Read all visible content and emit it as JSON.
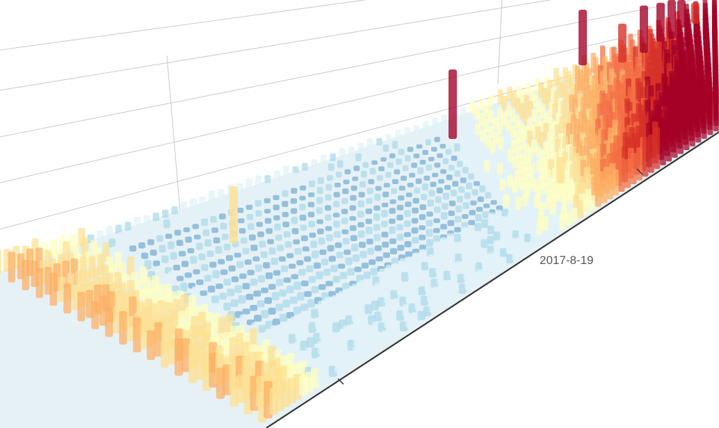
{
  "chart_data": {
    "type": "bar3d",
    "title": "",
    "x_axis": {
      "type": "date",
      "visible_tick_labels": [
        "2017-8-19"
      ]
    },
    "grid": true,
    "visual_map_colors": [
      "#313695",
      "#4575b4",
      "#74add1",
      "#abd9e9",
      "#e0f3f8",
      "#ffffbf",
      "#fee090",
      "#fdae61",
      "#f46d43",
      "#d73027",
      "#a50026"
    ],
    "bar_opacity": 0.7,
    "shading": "lambert"
  }
}
